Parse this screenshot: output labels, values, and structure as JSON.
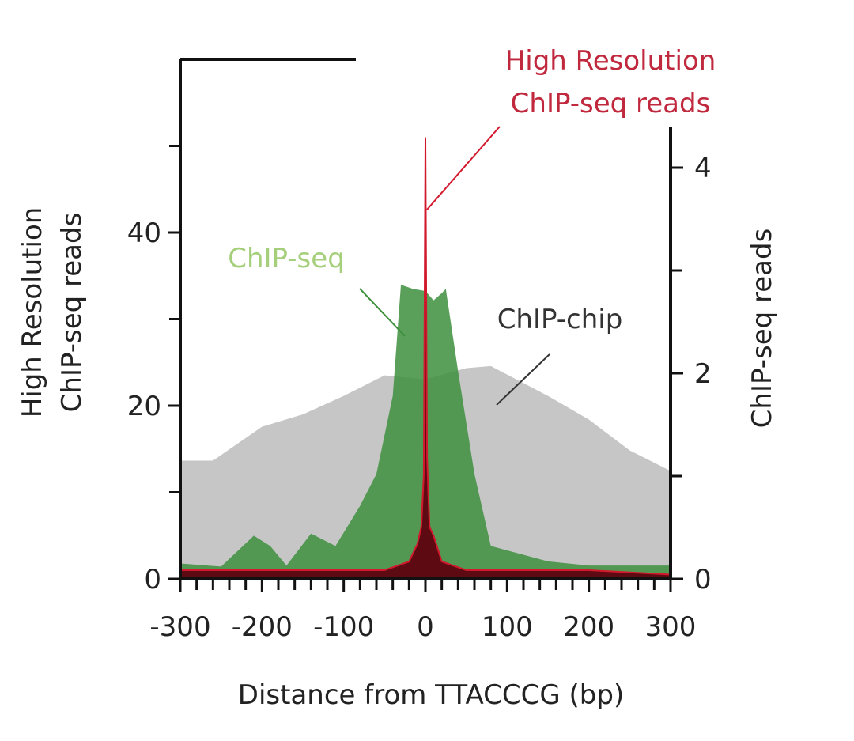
{
  "chart_data": {
    "type": "area",
    "ylabel": [
      "High Resolution",
      "ChIP-seq reads"
    ],
    "y2label": "ChIP-seq reads",
    "xlabel": "Distance from TTACCCG (bp)",
    "xlim": [
      -300,
      300
    ],
    "xticks": [
      -300,
      -200,
      -100,
      0,
      100,
      200,
      300
    ],
    "xminorticks": [
      -280,
      -260,
      -240,
      -220,
      -180,
      -160,
      -140,
      -120,
      -80,
      -60,
      -40,
      -20,
      20,
      40,
      60,
      80,
      120,
      140,
      160,
      180,
      220,
      240,
      260,
      280
    ],
    "ylim": [
      0,
      60
    ],
    "yticks": [
      0,
      20,
      40
    ],
    "yminorticks": [
      10,
      30,
      50
    ],
    "y2lim": [
      0,
      4.4
    ],
    "y2ticks": [
      0,
      2,
      4
    ],
    "y2minorticks": [
      1,
      3
    ],
    "series": [
      {
        "color": "#c6c6c6",
        "axis": "y2",
        "x": [
          -300,
          -260,
          -200,
          -150,
          -100,
          -50,
          0,
          50,
          80,
          150,
          200,
          250,
          300
        ],
        "values": [
          1.15,
          1.15,
          1.48,
          1.6,
          1.78,
          1.98,
          1.94,
          2.05,
          2.07,
          1.78,
          1.55,
          1.25,
          1.05
        ]
      },
      {
        "color": "#3d8f3d",
        "axis": "y2",
        "x": [
          -300,
          -250,
          -210,
          -190,
          -170,
          -140,
          -110,
          -80,
          -60,
          -40,
          -30,
          -15,
          0,
          10,
          20,
          25,
          40,
          60,
          80,
          150,
          200,
          300
        ],
        "values": [
          0.15,
          0.12,
          0.42,
          0.32,
          0.13,
          0.44,
          0.32,
          0.71,
          1.02,
          1.78,
          2.86,
          2.82,
          2.8,
          2.71,
          2.78,
          2.82,
          2.02,
          1.02,
          0.32,
          0.17,
          0.13,
          0.13
        ]
      },
      {
        "color": "#5e0a12",
        "line_color": "#d2182c",
        "axis": "y",
        "x": [
          -300,
          -200,
          -150,
          -100,
          -50,
          -20,
          -10,
          -5,
          -2,
          0,
          2,
          5,
          10,
          20,
          50,
          100,
          200,
          300
        ],
        "values": [
          1,
          1,
          1,
          1,
          1,
          2,
          4,
          6,
          12,
          51,
          14,
          6,
          5,
          2,
          1,
          1,
          1,
          0.5
        ]
      }
    ],
    "annotations": [
      {
        "lines": [
          "High Resolution",
          "ChIP-seq reads"
        ],
        "color": "#c0283e"
      },
      {
        "lines": [
          "ChIP-seq"
        ],
        "color": "#a6cf7c"
      },
      {
        "lines": [
          "ChIP-chip"
        ],
        "color": "#333333"
      }
    ]
  }
}
